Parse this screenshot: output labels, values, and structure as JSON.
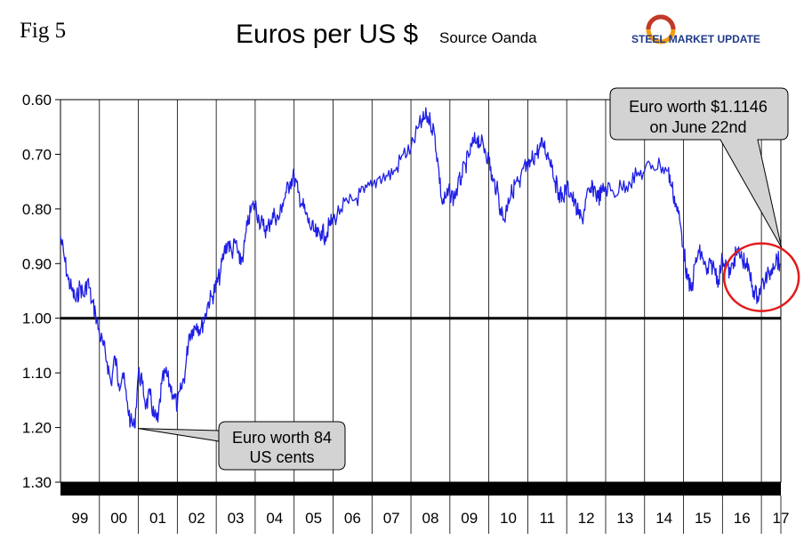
{
  "figure_label": "Fig 5",
  "title": "Euros per US $",
  "source_note": "Source Oanda",
  "logo": {
    "text": "STEEL MARKET UPDATE",
    "colors": {
      "ring_orange": "#f39c12",
      "ring_red": "#c0392b",
      "text": "#1f3a8a"
    }
  },
  "chart_data": {
    "type": "line",
    "title": "Euros per US $",
    "subtitle": "Source Oanda",
    "y_axis": {
      "inverted": true,
      "ylim": [
        0.6,
        1.3
      ],
      "ticks": [
        0.6,
        0.7,
        0.8,
        0.9,
        1.0,
        1.1,
        1.2,
        1.3
      ],
      "tick_labels": [
        "0.60",
        "0.70",
        "0.80",
        "0.90",
        "1.00",
        "1.10",
        "1.20",
        "1.30"
      ]
    },
    "x_axis": {
      "categories": [
        "99",
        "00",
        "01",
        "02",
        "03",
        "04",
        "05",
        "06",
        "07",
        "08",
        "09",
        "10",
        "11",
        "12",
        "13",
        "14",
        "15",
        "16",
        "17"
      ],
      "range": [
        1999,
        2017.5
      ]
    },
    "grid": "vertical lines between years",
    "reference_line": 1.0,
    "line_color": "#1e1ee6",
    "series": [
      {
        "x": [
          1999.0,
          1999.1,
          1999.2,
          1999.3,
          1999.4,
          1999.5,
          1999.6,
          1999.7,
          1999.8,
          1999.9,
          2000.0,
          2000.1,
          2000.2,
          2000.3,
          2000.4,
          2000.5,
          2000.6,
          2000.7,
          2000.8,
          2000.9,
          2001.0,
          2001.1,
          2001.2,
          2001.3,
          2001.4,
          2001.5,
          2001.6,
          2001.7,
          2001.8,
          2001.9,
          2002.0,
          2002.1,
          2002.2,
          2002.3,
          2002.4,
          2002.5,
          2002.6,
          2002.7,
          2002.8,
          2002.9,
          2003.0,
          2003.1,
          2003.2,
          2003.3,
          2003.4,
          2003.5,
          2003.6,
          2003.7,
          2003.8,
          2003.9,
          2004.0,
          2004.1,
          2004.2,
          2004.3,
          2004.4,
          2004.5,
          2004.6,
          2004.7,
          2004.8,
          2004.9,
          2005.0,
          2005.1,
          2005.2,
          2005.3,
          2005.4,
          2005.5,
          2005.6,
          2005.7,
          2005.8,
          2005.9,
          2006.0,
          2006.2,
          2006.4,
          2006.6,
          2006.8,
          2007.0,
          2007.2,
          2007.4,
          2007.6,
          2007.8,
          2008.0,
          2008.2,
          2008.3,
          2008.4,
          2008.5,
          2008.6,
          2008.7,
          2008.8,
          2008.9,
          2009.0,
          2009.1,
          2009.2,
          2009.3,
          2009.4,
          2009.5,
          2009.6,
          2009.7,
          2009.8,
          2009.9,
          2010.0,
          2010.1,
          2010.2,
          2010.3,
          2010.4,
          2010.5,
          2010.6,
          2010.7,
          2010.8,
          2010.9,
          2011.0,
          2011.1,
          2011.2,
          2011.3,
          2011.4,
          2011.5,
          2011.6,
          2011.7,
          2011.8,
          2011.9,
          2012.0,
          2012.1,
          2012.2,
          2012.3,
          2012.4,
          2012.5,
          2012.6,
          2012.7,
          2012.8,
          2012.9,
          2013.0,
          2013.2,
          2013.4,
          2013.6,
          2013.8,
          2014.0,
          2014.2,
          2014.4,
          2014.6,
          2014.7,
          2014.8,
          2014.9,
          2015.0,
          2015.1,
          2015.2,
          2015.3,
          2015.4,
          2015.5,
          2015.6,
          2015.7,
          2015.8,
          2015.9,
          2016.0,
          2016.1,
          2016.2,
          2016.3,
          2016.4,
          2016.5,
          2016.6,
          2016.7,
          2016.8,
          2016.9,
          2017.0,
          2017.1,
          2017.2,
          2017.3,
          2017.4,
          2017.47
        ],
        "values": [
          0.85,
          0.89,
          0.93,
          0.95,
          0.97,
          0.94,
          0.96,
          0.93,
          0.97,
          0.99,
          1.03,
          1.05,
          1.08,
          1.12,
          1.07,
          1.12,
          1.1,
          1.15,
          1.19,
          1.2,
          1.1,
          1.12,
          1.16,
          1.14,
          1.18,
          1.19,
          1.12,
          1.1,
          1.12,
          1.14,
          1.16,
          1.13,
          1.1,
          1.03,
          1.02,
          1.01,
          1.02,
          1.0,
          0.97,
          0.96,
          0.94,
          0.92,
          0.88,
          0.86,
          0.88,
          0.86,
          0.9,
          0.88,
          0.83,
          0.8,
          0.79,
          0.82,
          0.83,
          0.84,
          0.82,
          0.81,
          0.82,
          0.79,
          0.77,
          0.75,
          0.74,
          0.77,
          0.79,
          0.81,
          0.83,
          0.84,
          0.85,
          0.84,
          0.85,
          0.83,
          0.82,
          0.8,
          0.79,
          0.78,
          0.77,
          0.76,
          0.74,
          0.74,
          0.73,
          0.7,
          0.69,
          0.65,
          0.64,
          0.63,
          0.64,
          0.66,
          0.72,
          0.79,
          0.78,
          0.77,
          0.78,
          0.76,
          0.74,
          0.72,
          0.7,
          0.68,
          0.67,
          0.68,
          0.69,
          0.71,
          0.75,
          0.76,
          0.8,
          0.82,
          0.78,
          0.77,
          0.75,
          0.76,
          0.72,
          0.73,
          0.71,
          0.7,
          0.69,
          0.68,
          0.7,
          0.71,
          0.75,
          0.77,
          0.78,
          0.76,
          0.77,
          0.79,
          0.81,
          0.82,
          0.78,
          0.77,
          0.76,
          0.78,
          0.77,
          0.76,
          0.77,
          0.76,
          0.75,
          0.74,
          0.73,
          0.72,
          0.72,
          0.73,
          0.76,
          0.79,
          0.82,
          0.87,
          0.93,
          0.95,
          0.9,
          0.88,
          0.89,
          0.92,
          0.9,
          0.91,
          0.93,
          0.89,
          0.9,
          0.92,
          0.89,
          0.88,
          0.89,
          0.9,
          0.92,
          0.95,
          0.96,
          0.94,
          0.93,
          0.92,
          0.9,
          0.89,
          0.9
        ]
      }
    ],
    "annotations": [
      {
        "text": [
          "Euro worth $1.1146",
          "on June 22nd"
        ],
        "target": {
          "x": 2017.47,
          "y": 0.9
        }
      },
      {
        "text": [
          "Euro worth 84",
          "US cents"
        ],
        "target": {
          "x": 2000.9,
          "y": 1.2
        }
      }
    ],
    "highlight": {
      "shape": "ellipse",
      "color": "#e31b1b",
      "center": {
        "x": 2017.0,
        "y": 0.925
      }
    }
  }
}
